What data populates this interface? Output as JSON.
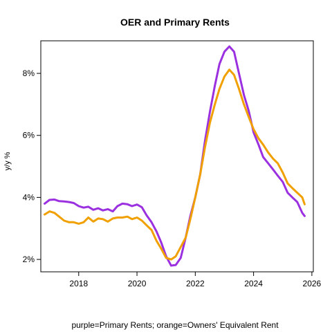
{
  "chart_data": {
    "type": "line",
    "title": "OER and Primary Rents",
    "xlabel": "purple=Primary Rents; orange=Owners' Equivalent Rent",
    "ylabel": "y/y %",
    "xlim": [
      2016.7,
      2026.05
    ],
    "ylim": [
      1.6,
      9.05
    ],
    "xticks": [
      2018,
      2020,
      2022,
      2024,
      2026
    ],
    "xtick_labels": [
      "2018",
      "2020",
      "2022",
      "2024",
      "2026"
    ],
    "yticks": [
      2,
      4,
      6,
      8
    ],
    "ytick_labels": [
      "2%",
      "4%",
      "6%",
      "8%"
    ],
    "grid": false,
    "legend": "none",
    "series": [
      {
        "name": "purple=Primary Rents",
        "color": "#9b30e0",
        "points": [
          [
            2016.83,
            3.8
          ],
          [
            2017.0,
            3.92
          ],
          [
            2017.17,
            3.93
          ],
          [
            2017.33,
            3.88
          ],
          [
            2017.5,
            3.87
          ],
          [
            2017.67,
            3.85
          ],
          [
            2017.83,
            3.82
          ],
          [
            2018.0,
            3.72
          ],
          [
            2018.17,
            3.67
          ],
          [
            2018.33,
            3.7
          ],
          [
            2018.5,
            3.6
          ],
          [
            2018.67,
            3.65
          ],
          [
            2018.83,
            3.58
          ],
          [
            2019.0,
            3.62
          ],
          [
            2019.17,
            3.55
          ],
          [
            2019.33,
            3.72
          ],
          [
            2019.5,
            3.8
          ],
          [
            2019.67,
            3.78
          ],
          [
            2019.83,
            3.72
          ],
          [
            2020.0,
            3.77
          ],
          [
            2020.17,
            3.68
          ],
          [
            2020.33,
            3.42
          ],
          [
            2020.5,
            3.2
          ],
          [
            2020.67,
            2.9
          ],
          [
            2020.83,
            2.55
          ],
          [
            2021.0,
            2.1
          ],
          [
            2021.17,
            1.8
          ],
          [
            2021.33,
            1.82
          ],
          [
            2021.5,
            2.05
          ],
          [
            2021.67,
            2.7
          ],
          [
            2021.83,
            3.4
          ],
          [
            2022.0,
            4.0
          ],
          [
            2022.17,
            4.75
          ],
          [
            2022.33,
            5.8
          ],
          [
            2022.5,
            6.75
          ],
          [
            2022.67,
            7.6
          ],
          [
            2022.83,
            8.3
          ],
          [
            2023.0,
            8.7
          ],
          [
            2023.17,
            8.87
          ],
          [
            2023.33,
            8.7
          ],
          [
            2023.5,
            8.0
          ],
          [
            2023.67,
            7.3
          ],
          [
            2023.83,
            6.8
          ],
          [
            2024.0,
            6.1
          ],
          [
            2024.17,
            5.7
          ],
          [
            2024.33,
            5.3
          ],
          [
            2024.5,
            5.1
          ],
          [
            2024.67,
            4.9
          ],
          [
            2024.83,
            4.7
          ],
          [
            2025.0,
            4.5
          ],
          [
            2025.17,
            4.15
          ],
          [
            2025.33,
            4.0
          ],
          [
            2025.5,
            3.85
          ],
          [
            2025.67,
            3.5
          ],
          [
            2025.75,
            3.4
          ]
        ]
      },
      {
        "name": "orange=Owners' Equivalent Rent",
        "color": "#f0a000",
        "points": [
          [
            2016.83,
            3.45
          ],
          [
            2017.0,
            3.55
          ],
          [
            2017.17,
            3.5
          ],
          [
            2017.33,
            3.38
          ],
          [
            2017.5,
            3.25
          ],
          [
            2017.67,
            3.2
          ],
          [
            2017.83,
            3.2
          ],
          [
            2018.0,
            3.15
          ],
          [
            2018.17,
            3.2
          ],
          [
            2018.33,
            3.35
          ],
          [
            2018.5,
            3.22
          ],
          [
            2018.67,
            3.32
          ],
          [
            2018.83,
            3.3
          ],
          [
            2019.0,
            3.22
          ],
          [
            2019.17,
            3.32
          ],
          [
            2019.33,
            3.35
          ],
          [
            2019.5,
            3.35
          ],
          [
            2019.67,
            3.38
          ],
          [
            2019.83,
            3.3
          ],
          [
            2020.0,
            3.35
          ],
          [
            2020.17,
            3.25
          ],
          [
            2020.33,
            3.1
          ],
          [
            2020.5,
            2.95
          ],
          [
            2020.67,
            2.6
          ],
          [
            2020.83,
            2.35
          ],
          [
            2021.0,
            2.05
          ],
          [
            2021.17,
            2.0
          ],
          [
            2021.33,
            2.1
          ],
          [
            2021.5,
            2.4
          ],
          [
            2021.67,
            2.7
          ],
          [
            2021.83,
            3.3
          ],
          [
            2022.0,
            4.0
          ],
          [
            2022.17,
            4.75
          ],
          [
            2022.33,
            5.6
          ],
          [
            2022.5,
            6.4
          ],
          [
            2022.67,
            7.0
          ],
          [
            2022.83,
            7.5
          ],
          [
            2023.0,
            7.9
          ],
          [
            2023.17,
            8.12
          ],
          [
            2023.33,
            7.95
          ],
          [
            2023.5,
            7.5
          ],
          [
            2023.67,
            7.0
          ],
          [
            2023.83,
            6.6
          ],
          [
            2024.0,
            6.2
          ],
          [
            2024.17,
            5.9
          ],
          [
            2024.33,
            5.7
          ],
          [
            2024.5,
            5.45
          ],
          [
            2024.67,
            5.25
          ],
          [
            2024.83,
            5.1
          ],
          [
            2025.0,
            4.8
          ],
          [
            2025.17,
            4.45
          ],
          [
            2025.33,
            4.3
          ],
          [
            2025.5,
            4.15
          ],
          [
            2025.67,
            4.0
          ],
          [
            2025.75,
            3.78
          ]
        ]
      }
    ]
  }
}
